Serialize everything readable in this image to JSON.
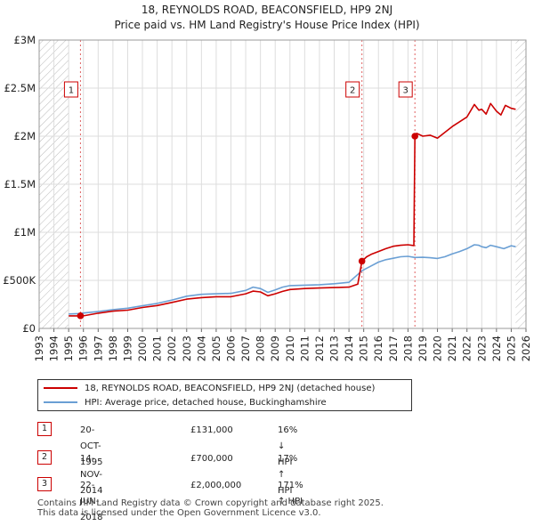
{
  "title_line1": "18, REYNOLDS ROAD, BEACONSFIELD, HP9 2NJ",
  "title_line2": "Price paid vs. HM Land Registry's House Price Index (HPI)",
  "colors": {
    "property": "#cc0000",
    "hpi": "#6a9fd4",
    "grid": "#dddddd",
    "hatch": "#bbbbbb",
    "sale_line": "#e06060"
  },
  "chart_data": {
    "type": "line",
    "title": "18, REYNOLDS ROAD, BEACONSFIELD, HP9 2NJ — Price paid vs. HM Land Registry's House Price Index (HPI)",
    "xlim": [
      1993,
      2026
    ],
    "ylim": [
      0,
      3000000
    ],
    "x_ticks": [
      1993,
      1994,
      1995,
      1996,
      1997,
      1998,
      1999,
      2000,
      2001,
      2002,
      2003,
      2004,
      2005,
      2006,
      2007,
      2008,
      2009,
      2010,
      2011,
      2012,
      2013,
      2014,
      2015,
      2016,
      2017,
      2018,
      2019,
      2020,
      2021,
      2022,
      2023,
      2024,
      2025,
      2026
    ],
    "y_ticks": [
      {
        "value": 0,
        "label": "£0"
      },
      {
        "value": 500000,
        "label": "£500K"
      },
      {
        "value": 1000000,
        "label": "£1M"
      },
      {
        "value": 1500000,
        "label": "£1.5M"
      },
      {
        "value": 2000000,
        "label": "£2M"
      },
      {
        "value": 2500000,
        "label": "£2.5M"
      },
      {
        "value": 3000000,
        "label": "£3M"
      }
    ],
    "hatched_ranges": [
      [
        1993,
        1995.0
      ],
      [
        2025.3,
        2026
      ]
    ],
    "series": [
      {
        "name": "18, REYNOLDS ROAD, BEACONSFIELD, HP9 2NJ (detached house)",
        "color": "#cc0000",
        "x": [
          1995.0,
          1995.8,
          1996.0,
          1997.0,
          1998.0,
          1999.0,
          2000.0,
          2001.0,
          2002.0,
          2003.0,
          2004.0,
          2005.0,
          2006.0,
          2007.0,
          2007.5,
          2008.0,
          2008.5,
          2009.0,
          2009.5,
          2010.0,
          2011.0,
          2012.0,
          2013.0,
          2014.0,
          2014.6,
          2014.88,
          2015.2,
          2015.5,
          2016.0,
          2016.5,
          2017.0,
          2017.5,
          2018.0,
          2018.4,
          2018.47,
          2018.6,
          2019.0,
          2019.5,
          2020.0,
          2020.5,
          2021.0,
          2021.5,
          2022.0,
          2022.5,
          2022.8,
          2023.0,
          2023.3,
          2023.6,
          2024.0,
          2024.3,
          2024.6,
          2025.0,
          2025.3
        ],
        "values": [
          131000,
          131000,
          131000,
          158000,
          180000,
          190000,
          218000,
          238000,
          270000,
          305000,
          320000,
          330000,
          330000,
          360000,
          388000,
          380000,
          340000,
          360000,
          385000,
          405000,
          415000,
          420000,
          425000,
          430000,
          460000,
          700000,
          745000,
          770000,
          800000,
          830000,
          855000,
          865000,
          870000,
          862000,
          2000000,
          2030000,
          2000000,
          2010000,
          1980000,
          2040000,
          2100000,
          2150000,
          2200000,
          2330000,
          2270000,
          2280000,
          2230000,
          2340000,
          2260000,
          2220000,
          2320000,
          2290000,
          2280000
        ]
      },
      {
        "name": "HPI: Average price, detached house, Buckinghamshire",
        "color": "#6a9fd4",
        "x": [
          1995.0,
          1995.8,
          1996.0,
          1997.0,
          1998.0,
          1999.0,
          2000.0,
          2001.0,
          2002.0,
          2003.0,
          2004.0,
          2005.0,
          2006.0,
          2007.0,
          2007.5,
          2008.0,
          2008.5,
          2009.0,
          2009.5,
          2010.0,
          2011.0,
          2012.0,
          2013.0,
          2014.0,
          2014.88,
          2015.5,
          2016.0,
          2016.5,
          2017.0,
          2017.5,
          2018.0,
          2018.47,
          2019.0,
          2019.5,
          2020.0,
          2020.5,
          2021.0,
          2021.5,
          2022.0,
          2022.5,
          2022.8,
          2023.0,
          2023.3,
          2023.6,
          2024.0,
          2024.5,
          2025.0,
          2025.3
        ],
        "values": [
          150000,
          155000,
          160000,
          175000,
          195000,
          210000,
          235000,
          260000,
          295000,
          335000,
          355000,
          360000,
          365000,
          395000,
          430000,
          415000,
          375000,
          400000,
          430000,
          445000,
          450000,
          455000,
          465000,
          480000,
          600000,
          650000,
          690000,
          715000,
          730000,
          745000,
          750000,
          738000,
          740000,
          735000,
          728000,
          745000,
          775000,
          800000,
          830000,
          870000,
          865000,
          850000,
          840000,
          865000,
          850000,
          830000,
          860000,
          850000
        ]
      }
    ],
    "sales": [
      {
        "num": "1",
        "x": 1995.8,
        "value": 131000,
        "date": "20-OCT-1995",
        "price": "£131,000",
        "hpi": "16% ↓ HPI"
      },
      {
        "num": "2",
        "x": 2014.88,
        "value": 700000,
        "date": "14-NOV-2014",
        "price": "£700,000",
        "hpi": "17% ↑ HPI"
      },
      {
        "num": "3",
        "x": 2018.47,
        "value": 2000000,
        "date": "22-JUN-2018",
        "price": "£2,000,000",
        "hpi": "171% ↑ HPI"
      }
    ]
  },
  "legend": {
    "property_label": "18, REYNOLDS ROAD, BEACONSFIELD, HP9 2NJ (detached house)",
    "hpi_label": "HPI: Average price, detached house, Buckinghamshire"
  },
  "footer": {
    "line1": "Contains HM Land Registry data © Crown copyright and database right 2025.",
    "line2": "This data is licensed under the Open Government Licence v3.0."
  }
}
